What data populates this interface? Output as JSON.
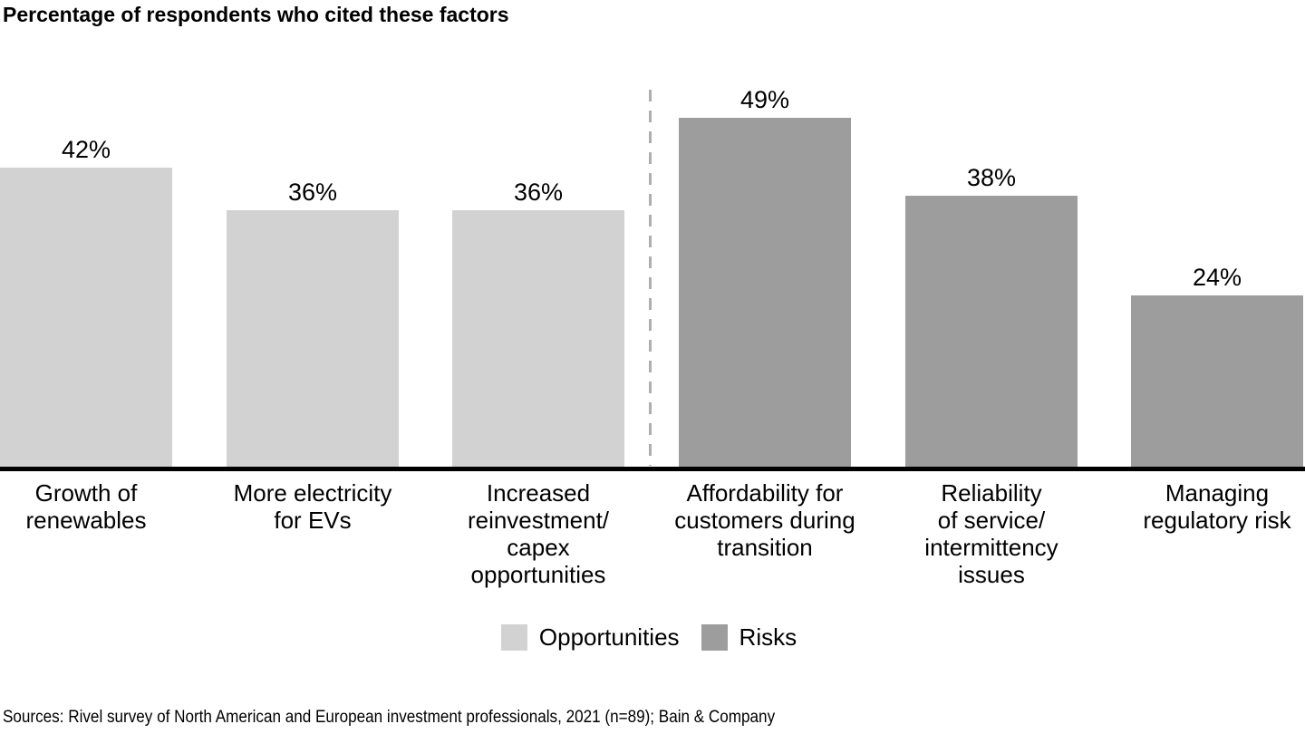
{
  "title": "Percentage of respondents who cited these factors",
  "source_line": "Sources: Rivel survey of North American and European investment professionals, 2021 (n=89); Bain & Company",
  "colors": {
    "opportunities": "#d2d2d2",
    "risks": "#9d9d9d",
    "axis": "#000000",
    "divider": "#aeaeae",
    "text": "#000000",
    "background": "#ffffff"
  },
  "legend": {
    "items": [
      {
        "label": "Opportunities",
        "group": "Opportunities"
      },
      {
        "label": "Risks",
        "group": "Risks"
      }
    ]
  },
  "chart_data": {
    "type": "bar",
    "title": "Percentage of respondents who cited these factors",
    "unit": "percent of respondents",
    "xlabel": "",
    "ylabel": "",
    "ylim": [
      0,
      49
    ],
    "grid": false,
    "legend_position": "bottom",
    "divider_note": "dashed vertical line separates Opportunities bars from Risks bars",
    "categories": [
      "Growth of renewables",
      "More electricity for EVs",
      "Increased reinvestment/capex opportunities",
      "Affordability for customers during transition",
      "Reliability of service/intermittency issues",
      "Managing regulatory risk"
    ],
    "category_label_lines": [
      [
        "Growth of",
        "renewables"
      ],
      [
        "More electricity",
        "for EVs"
      ],
      [
        "Increased",
        "reinvestment/",
        "capex",
        "opportunities"
      ],
      [
        "Affordability for",
        "customers during",
        "transition"
      ],
      [
        "Reliability",
        "of service/",
        "intermittency",
        "issues"
      ],
      [
        "Managing",
        "regulatory risk"
      ]
    ],
    "values": [
      42,
      36,
      36,
      49,
      38,
      24
    ],
    "value_labels": [
      "42%",
      "36%",
      "36%",
      "49%",
      "38%",
      "24%"
    ],
    "groups": [
      "Opportunities",
      "Opportunities",
      "Opportunities",
      "Risks",
      "Risks",
      "Risks"
    ]
  }
}
